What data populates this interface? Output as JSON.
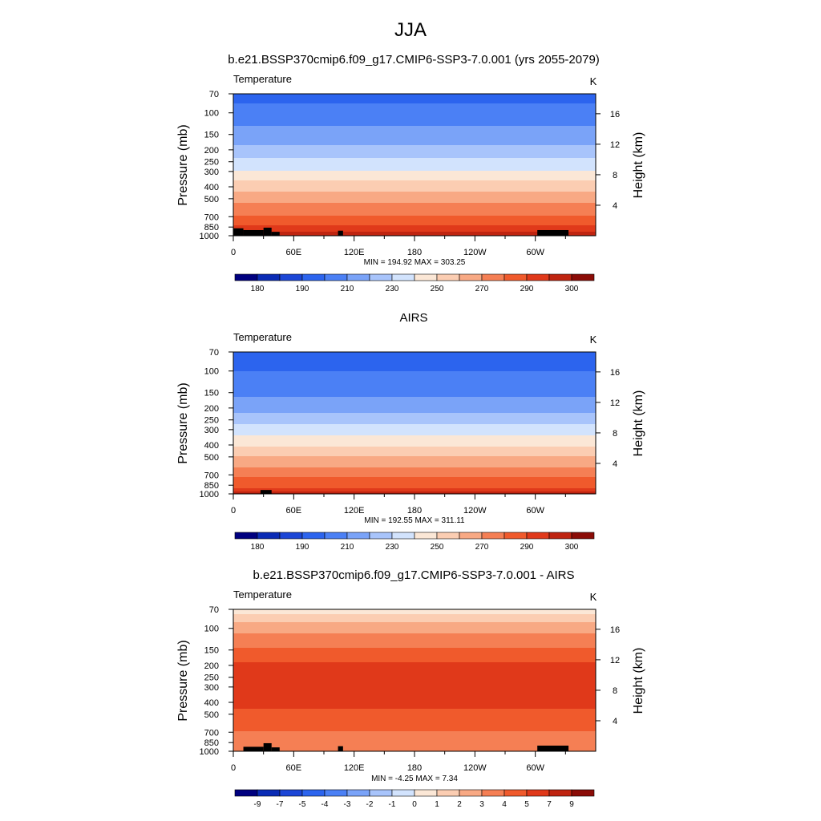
{
  "page_title": "JJA",
  "chart_data": [
    {
      "type": "heatmap",
      "title": "b.e21.BSSP370cmip6.f09_g17.CMIP6-SSP3-7.0.001 (yrs 2055-2079)",
      "left_label": "Temperature",
      "units": "K",
      "ylabel": "Pressure (mb)",
      "ylabel_right": "Height (km)",
      "x_ticks": [
        "0",
        "60E",
        "120E",
        "180",
        "120W",
        "60W"
      ],
      "x_tick_positions_deg": [
        0,
        60,
        120,
        180,
        240,
        300
      ],
      "xlim": [
        0,
        360
      ],
      "y_ticks": [
        70,
        100,
        150,
        200,
        250,
        300,
        400,
        500,
        700,
        850,
        1000
      ],
      "ylim": [
        1000,
        70
      ],
      "y_scale": "log",
      "height_ticks_km": [
        4,
        8,
        12,
        16
      ],
      "stats": "MIN = 194.92  MAX = 303.25",
      "levels": [
        175,
        180,
        185,
        190,
        200,
        210,
        220,
        230,
        240,
        250,
        260,
        270,
        280,
        290,
        295,
        300,
        305
      ],
      "colorbar_labels": [
        "180",
        "190",
        "210",
        "230",
        "250",
        "270",
        "290",
        "300"
      ],
      "colors": [
        "#00007f",
        "#0a2bb5",
        "#1c46d6",
        "#2c64ee",
        "#4b80f5",
        "#7aa3f8",
        "#a8c4fb",
        "#d2e3fd",
        "#fbe7d6",
        "#fbcdb2",
        "#f8a984",
        "#f57f54",
        "#f05a2c",
        "#e0391a",
        "#bf2410",
        "#8b0c07"
      ],
      "profile": [
        {
          "p": 70,
          "v": 196
        },
        {
          "p": 100,
          "v": 205
        },
        {
          "p": 150,
          "v": 214
        },
        {
          "p": 200,
          "v": 224
        },
        {
          "p": 250,
          "v": 233
        },
        {
          "p": 300,
          "v": 242
        },
        {
          "p": 400,
          "v": 256
        },
        {
          "p": 500,
          "v": 267
        },
        {
          "p": 700,
          "v": 282
        },
        {
          "p": 850,
          "v": 292
        },
        {
          "p": 1000,
          "v": 300
        }
      ],
      "terrain": [
        [
          0,
          10,
          870
        ],
        [
          10,
          30,
          900
        ],
        [
          30,
          38,
          860
        ],
        [
          38,
          46,
          930
        ],
        [
          104,
          109,
          910
        ],
        [
          302,
          333,
          900
        ]
      ]
    },
    {
      "type": "heatmap",
      "title": "AIRS",
      "left_label": "Temperature",
      "units": "K",
      "ylabel": "Pressure (mb)",
      "ylabel_right": "Height (km)",
      "x_ticks": [
        "0",
        "60E",
        "120E",
        "180",
        "120W",
        "60W"
      ],
      "x_tick_positions_deg": [
        0,
        60,
        120,
        180,
        240,
        300
      ],
      "xlim": [
        0,
        360
      ],
      "y_ticks": [
        70,
        100,
        150,
        200,
        250,
        300,
        400,
        500,
        700,
        850,
        1000
      ],
      "ylim": [
        1000,
        70
      ],
      "y_scale": "log",
      "height_ticks_km": [
        4,
        8,
        12,
        16
      ],
      "stats": "MIN = 192.55  MAX = 311.11",
      "levels": [
        175,
        180,
        185,
        190,
        200,
        210,
        220,
        230,
        240,
        250,
        260,
        270,
        280,
        290,
        295,
        300,
        305
      ],
      "colorbar_labels": [
        "180",
        "190",
        "210",
        "230",
        "250",
        "270",
        "290",
        "300"
      ],
      "colors": [
        "#00007f",
        "#0a2bb5",
        "#1c46d6",
        "#2c64ee",
        "#4b80f5",
        "#7aa3f8",
        "#a8c4fb",
        "#d2e3fd",
        "#fbe7d6",
        "#fbcdb2",
        "#f8a984",
        "#f57f54",
        "#f05a2c",
        "#e0391a",
        "#bf2410",
        "#8b0c07"
      ],
      "profile": [
        {
          "p": 70,
          "v": 193
        },
        {
          "p": 100,
          "v": 200
        },
        {
          "p": 150,
          "v": 208
        },
        {
          "p": 200,
          "v": 217
        },
        {
          "p": 250,
          "v": 226
        },
        {
          "p": 300,
          "v": 236
        },
        {
          "p": 400,
          "v": 250
        },
        {
          "p": 500,
          "v": 262
        },
        {
          "p": 700,
          "v": 278
        },
        {
          "p": 850,
          "v": 288
        },
        {
          "p": 1000,
          "v": 298
        }
      ],
      "terrain": [
        [
          27,
          38,
          930
        ]
      ]
    },
    {
      "type": "heatmap",
      "title": "b.e21.BSSP370cmip6.f09_g17.CMIP6-SSP3-7.0.001 - AIRS",
      "left_label": "Temperature",
      "units": "K",
      "ylabel": "Pressure (mb)",
      "ylabel_right": "Height (km)",
      "x_ticks": [
        "0",
        "60E",
        "120E",
        "180",
        "120W",
        "60W"
      ],
      "x_tick_positions_deg": [
        0,
        60,
        120,
        180,
        240,
        300
      ],
      "xlim": [
        0,
        360
      ],
      "y_ticks": [
        70,
        100,
        150,
        200,
        250,
        300,
        400,
        500,
        700,
        850,
        1000
      ],
      "ylim": [
        1000,
        70
      ],
      "y_scale": "log",
      "height_ticks_km": [
        4,
        8,
        12,
        16
      ],
      "stats": "MIN =  -4.25  MAX =   7.34",
      "levels": [
        -10,
        -9,
        -8,
        -7,
        -5,
        -4,
        -3,
        -2,
        -1,
        0,
        1,
        2,
        3,
        4,
        5,
        7,
        9
      ],
      "colorbar_labels": [
        "-9",
        "-7",
        "-5",
        "-4",
        "-3",
        "-2",
        "-1",
        "0",
        "1",
        "2",
        "3",
        "4",
        "5",
        "7",
        "9"
      ],
      "colors": [
        "#00007f",
        "#0a2bb5",
        "#1c46d6",
        "#2c64ee",
        "#4b80f5",
        "#7aa3f8",
        "#a8c4fb",
        "#d2e3fd",
        "#fbe7d6",
        "#fbcdb2",
        "#f8a984",
        "#f57f54",
        "#f05a2c",
        "#e0391a",
        "#bf2410",
        "#8b0c07"
      ],
      "profile": [
        {
          "p": 70,
          "v": -0.5
        },
        {
          "p": 80,
          "v": 0.5
        },
        {
          "p": 95,
          "v": 1.5
        },
        {
          "p": 120,
          "v": 2.5
        },
        {
          "p": 160,
          "v": 3.4
        },
        {
          "p": 200,
          "v": 4.3
        },
        {
          "p": 300,
          "v": 4.6
        },
        {
          "p": 400,
          "v": 4.3
        },
        {
          "p": 500,
          "v": 3.6
        },
        {
          "p": 650,
          "v": 3.1
        },
        {
          "p": 800,
          "v": 2.6
        },
        {
          "p": 1000,
          "v": 2.3
        }
      ],
      "terrain": [
        [
          10,
          30,
          920
        ],
        [
          30,
          38,
          860
        ],
        [
          38,
          46,
          930
        ],
        [
          104,
          109,
          910
        ],
        [
          302,
          333,
          900
        ]
      ]
    }
  ]
}
